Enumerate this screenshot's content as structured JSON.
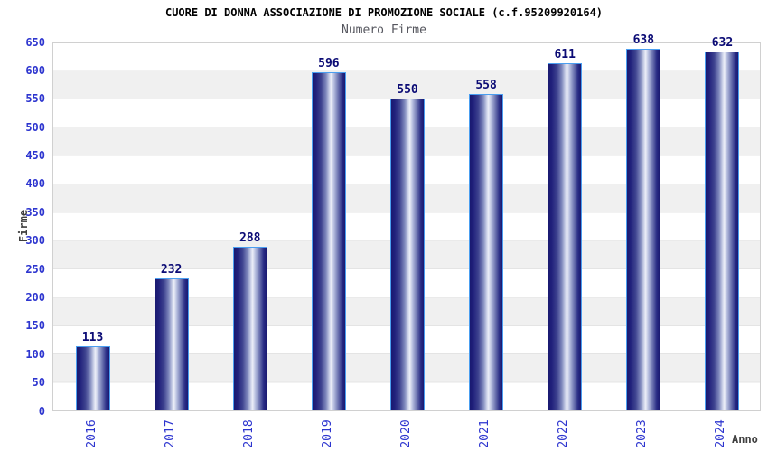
{
  "chart_data": {
    "type": "bar",
    "title": "CUORE DI DONNA ASSOCIAZIONE DI PROMOZIONE SOCIALE (c.f.95209920164)",
    "subtitle": "Numero Firme",
    "xlabel": "Anno",
    "ylabel": "Firme",
    "categories": [
      "2016",
      "2017",
      "2018",
      "2019",
      "2020",
      "2021",
      "2022",
      "2023",
      "2024"
    ],
    "values": [
      113,
      232,
      288,
      596,
      550,
      558,
      611,
      638,
      632
    ],
    "ylim": [
      0,
      650
    ],
    "ytick_step": 50,
    "grid": "alternating horizontal bands every 50 units",
    "legend": "none",
    "bar_labels_shown": true,
    "colors": {
      "title_text": "#000000",
      "subtitle_text": "#55565e",
      "tick_text": "#2d35cf",
      "value_label": "#0b0b75",
      "axis_label_text": "#3f3f3f",
      "bar_dark": "#191970",
      "bar_highlight": "#edeff8",
      "bar_border": "#4a9ef0",
      "band_gray": "#f0f0f0",
      "plot_border": "#d0d0d0"
    }
  }
}
